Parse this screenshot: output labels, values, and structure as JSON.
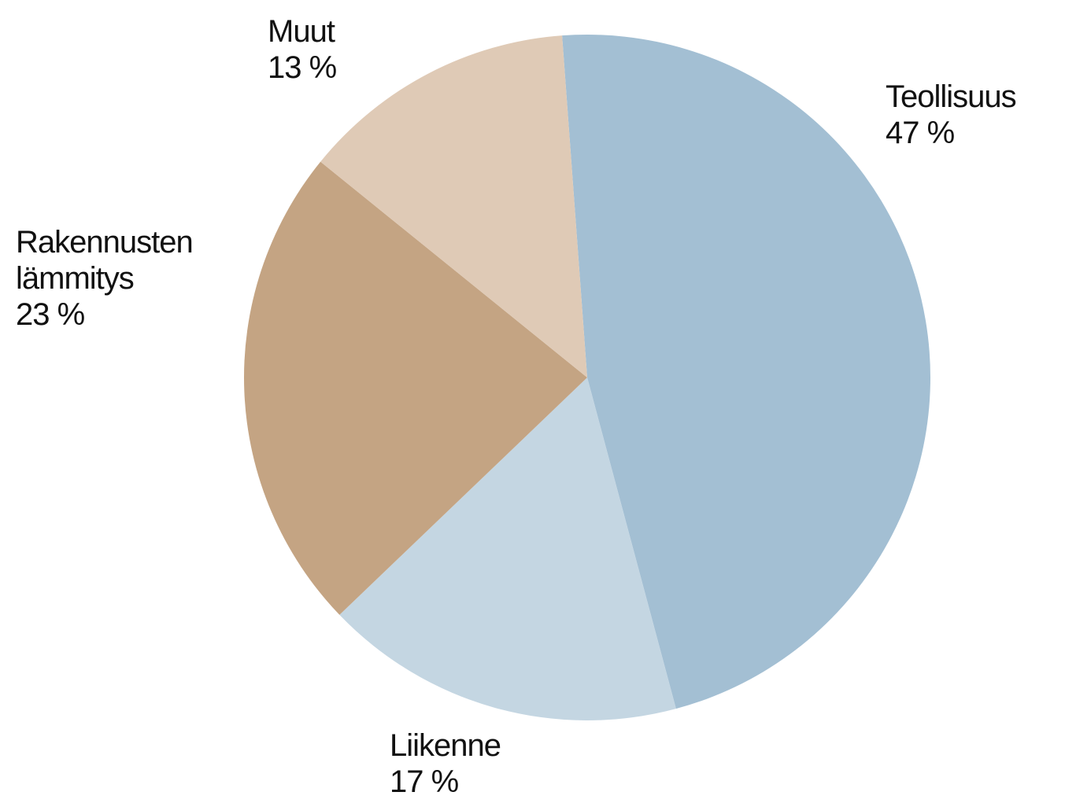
{
  "chart_data": {
    "type": "pie",
    "categories": [
      "Teollisuus",
      "Liikenne",
      "Rakennusten lämmitys",
      "Muut"
    ],
    "values": [
      47,
      17,
      23,
      13
    ],
    "value_labels": [
      "47 %",
      "17 %",
      "23 %",
      "13 %"
    ],
    "colors": [
      "#a3bfd3",
      "#c4d6e2",
      "#c4a483",
      "#dfcab6"
    ]
  }
}
